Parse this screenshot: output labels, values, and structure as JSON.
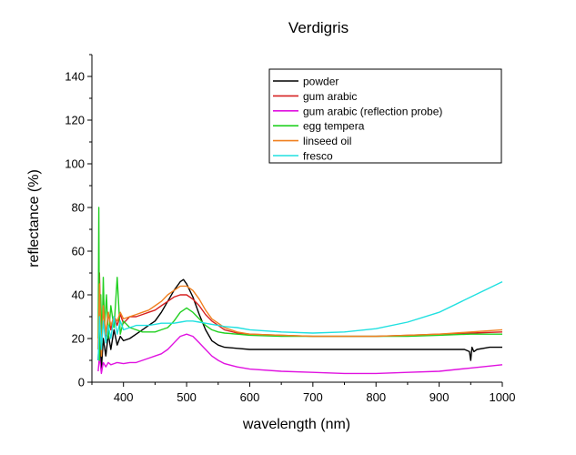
{
  "chart_data": {
    "type": "line",
    "title": "Verdigris",
    "xlabel": "wavelength (nm)",
    "ylabel": "reflectance (%)",
    "xlim": [
      350,
      1000
    ],
    "ylim": [
      0,
      150
    ],
    "x_ticks": [
      400,
      500,
      600,
      700,
      800,
      900,
      1000
    ],
    "y_ticks": [
      0,
      20,
      40,
      60,
      80,
      100,
      120,
      140
    ],
    "grid": false,
    "legend_position": "top-right",
    "series": [
      {
        "name": "powder",
        "color": "#000000",
        "x": [
          360,
          362,
          365,
          368,
          372,
          376,
          380,
          385,
          390,
          395,
          400,
          410,
          420,
          430,
          440,
          450,
          460,
          470,
          480,
          490,
          495,
          500,
          510,
          520,
          530,
          540,
          550,
          560,
          580,
          600,
          650,
          700,
          750,
          800,
          850,
          900,
          940,
          948,
          950,
          952,
          955,
          960,
          980,
          1000
        ],
        "y": [
          10,
          25,
          6,
          20,
          12,
          22,
          15,
          24,
          17,
          21,
          19,
          20,
          22,
          24,
          26,
          28,
          32,
          37,
          42,
          46,
          47,
          45,
          39,
          31,
          24,
          19,
          17,
          16,
          15.5,
          15,
          15,
          15,
          15,
          15,
          15,
          15,
          15,
          14,
          10,
          16,
          14,
          15,
          16,
          16
        ]
      },
      {
        "name": "gum arabic",
        "color": "#d62020",
        "x": [
          360,
          362,
          365,
          368,
          372,
          376,
          380,
          385,
          390,
          395,
          400,
          410,
          420,
          430,
          440,
          450,
          460,
          470,
          480,
          490,
          500,
          510,
          520,
          530,
          540,
          550,
          560,
          580,
          600,
          650,
          700,
          750,
          800,
          850,
          900,
          950,
          1000
        ],
        "y": [
          15,
          50,
          12,
          35,
          20,
          32,
          24,
          30,
          26,
          31,
          27,
          30,
          30,
          31,
          32,
          33,
          35,
          37,
          39,
          40,
          40,
          38,
          35,
          31,
          28,
          26,
          24,
          22.5,
          22,
          21.5,
          21,
          21,
          21,
          21.5,
          22,
          22.5,
          23
        ]
      },
      {
        "name": "gum arabic (reflection probe)",
        "color": "#e011e0",
        "x": [
          360,
          362,
          365,
          368,
          372,
          376,
          380,
          385,
          390,
          400,
          410,
          420,
          430,
          440,
          450,
          460,
          470,
          480,
          490,
          500,
          510,
          520,
          530,
          540,
          550,
          560,
          580,
          600,
          650,
          700,
          750,
          800,
          850,
          900,
          950,
          1000
        ],
        "y": [
          5,
          12,
          4,
          9,
          7,
          9,
          8,
          8.5,
          9,
          8.5,
          9,
          9,
          10,
          11,
          12,
          13,
          15,
          18,
          21,
          22,
          21,
          18,
          15,
          12,
          10,
          8.5,
          7,
          6,
          5,
          4.5,
          4,
          4,
          4.5,
          5,
          6.5,
          8
        ]
      },
      {
        "name": "egg tempera",
        "color": "#22d022",
        "x": [
          360,
          361,
          362,
          364,
          366,
          368,
          370,
          373,
          376,
          380,
          385,
          390,
          395,
          400,
          410,
          420,
          430,
          440,
          450,
          460,
          470,
          480,
          490,
          500,
          510,
          520,
          530,
          540,
          550,
          560,
          580,
          600,
          650,
          700,
          750,
          800,
          850,
          900,
          950,
          1000
        ],
        "y": [
          20,
          80,
          10,
          40,
          18,
          48,
          25,
          40,
          20,
          35,
          25,
          48,
          22,
          28,
          25,
          24,
          23,
          23,
          23,
          24,
          25,
          28,
          32,
          34,
          32,
          29,
          26,
          24,
          23,
          22.5,
          22,
          21.5,
          21,
          21,
          21,
          21,
          21,
          21.5,
          22,
          22
        ]
      },
      {
        "name": "linseed oil",
        "color": "#f08020",
        "x": [
          360,
          362,
          365,
          368,
          372,
          376,
          380,
          385,
          390,
          395,
          400,
          410,
          420,
          430,
          440,
          450,
          460,
          470,
          480,
          490,
          500,
          510,
          520,
          530,
          540,
          550,
          560,
          580,
          600,
          650,
          700,
          750,
          800,
          850,
          900,
          950,
          1000
        ],
        "y": [
          15,
          45,
          12,
          35,
          22,
          32,
          26,
          30,
          28,
          32,
          29,
          30,
          31,
          32,
          33,
          35,
          37,
          40,
          42,
          44,
          44,
          42,
          38,
          33,
          29,
          27,
          25,
          23,
          22,
          21.5,
          21,
          21,
          21,
          21.5,
          22,
          23,
          24
        ]
      },
      {
        "name": "fresco",
        "color": "#20e0e0",
        "x": [
          360,
          362,
          365,
          368,
          372,
          376,
          380,
          385,
          390,
          395,
          400,
          410,
          420,
          430,
          440,
          450,
          460,
          470,
          480,
          490,
          500,
          510,
          520,
          530,
          540,
          550,
          560,
          580,
          600,
          650,
          700,
          750,
          800,
          850,
          900,
          950,
          1000
        ],
        "y": [
          10,
          30,
          15,
          28,
          18,
          26,
          20,
          30,
          22,
          28,
          24,
          25,
          26,
          26,
          26,
          26.5,
          27,
          27,
          27,
          27.5,
          28,
          28,
          27.5,
          27,
          26.5,
          26,
          25.5,
          25,
          24,
          23,
          22.5,
          23,
          24.5,
          27.5,
          32,
          39,
          46
        ]
      }
    ]
  }
}
